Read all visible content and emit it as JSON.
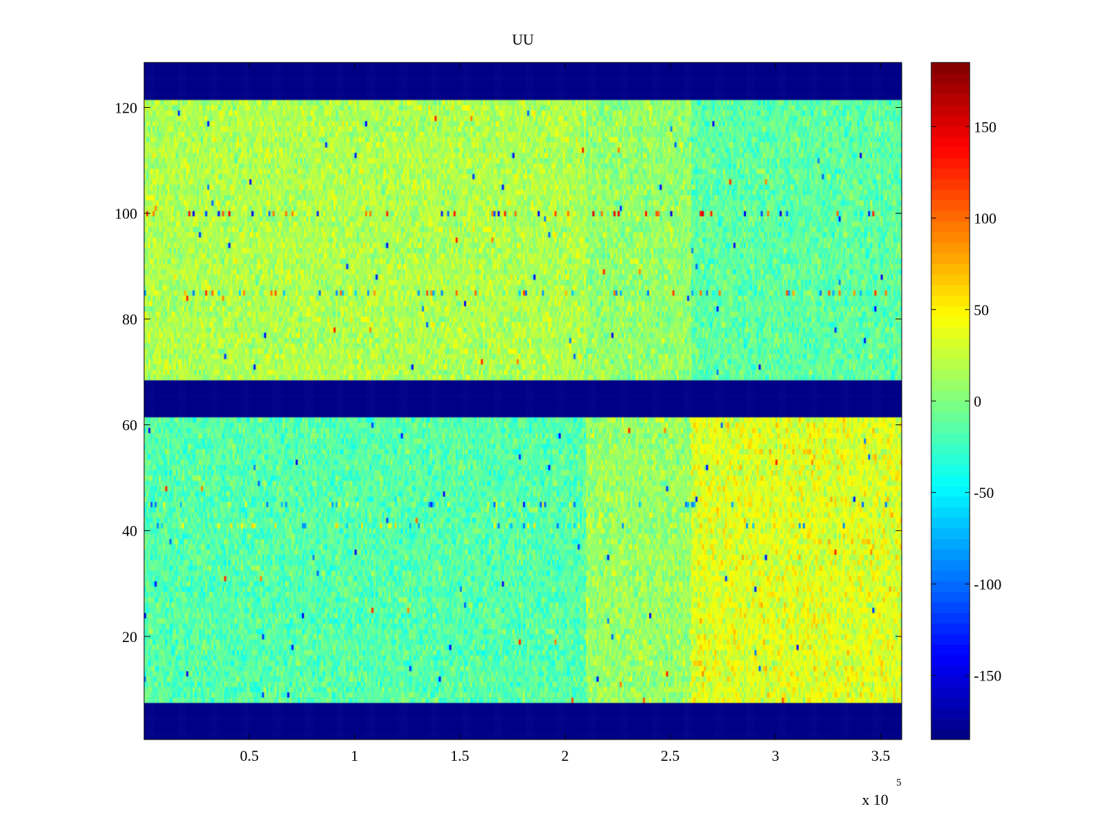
{
  "chart_data": {
    "type": "heatmap",
    "title": "UU",
    "xlabel": "",
    "ylabel": "",
    "x_exponent_label": "x 10",
    "x_exponent": "5",
    "xlim": [
      0,
      3.6
    ],
    "ylim": [
      0.5,
      128.5
    ],
    "x_ticks": [
      {
        "value": 0.5,
        "label": "0.5"
      },
      {
        "value": 1,
        "label": "1"
      },
      {
        "value": 1.5,
        "label": "1.5"
      },
      {
        "value": 2,
        "label": "2"
      },
      {
        "value": 2.5,
        "label": "2.5"
      },
      {
        "value": 3,
        "label": "3"
      },
      {
        "value": 3.5,
        "label": "3.5"
      }
    ],
    "y_ticks": [
      {
        "value": 20,
        "label": "20"
      },
      {
        "value": 40,
        "label": "40"
      },
      {
        "value": 60,
        "label": "60"
      },
      {
        "value": 80,
        "label": "80"
      },
      {
        "value": 100,
        "label": "100"
      },
      {
        "value": 120,
        "label": "120"
      }
    ],
    "colorbar": {
      "colormap": "jet",
      "clim": [
        -185,
        185
      ],
      "ticks": [
        {
          "value": 150,
          "label": "150"
        },
        {
          "value": 100,
          "label": "100"
        },
        {
          "value": 50,
          "label": "50"
        },
        {
          "value": 0,
          "label": "0"
        },
        {
          "value": -50,
          "label": "-50"
        },
        {
          "value": -100,
          "label": "-100"
        },
        {
          "value": -150,
          "label": "-150"
        }
      ]
    },
    "masked_row_bands": [
      [
        0.5,
        7.5
      ],
      [
        61.5,
        68.5
      ],
      [
        121.5,
        128.5
      ]
    ],
    "masked_value": -185,
    "regions": [
      {
        "rows": [
          69,
          121
        ],
        "x_range": [
          0,
          2.1
        ],
        "mean": 18,
        "noise": 22
      },
      {
        "rows": [
          69,
          121
        ],
        "x_range": [
          2.1,
          2.6
        ],
        "mean": 8,
        "noise": 22
      },
      {
        "rows": [
          69,
          121
        ],
        "x_range": [
          2.6,
          3.6
        ],
        "mean": -12,
        "noise": 22
      },
      {
        "rows": [
          8,
          61
        ],
        "x_range": [
          0,
          2.1
        ],
        "mean": -15,
        "noise": 22
      },
      {
        "rows": [
          8,
          61
        ],
        "x_range": [
          2.1,
          2.6
        ],
        "mean": 10,
        "noise": 22
      },
      {
        "rows": [
          8,
          61
        ],
        "x_range": [
          2.6,
          3.6
        ],
        "mean": 35,
        "noise": 25
      }
    ],
    "streak_rows": [
      {
        "row": 100,
        "values_range": [
          -150,
          150
        ]
      },
      {
        "row": 85,
        "values_range": [
          -100,
          120
        ]
      },
      {
        "row": 45,
        "values_range": [
          -110,
          40
        ]
      },
      {
        "row": 41,
        "values_range": [
          -100,
          60
        ]
      }
    ],
    "grid": false
  }
}
